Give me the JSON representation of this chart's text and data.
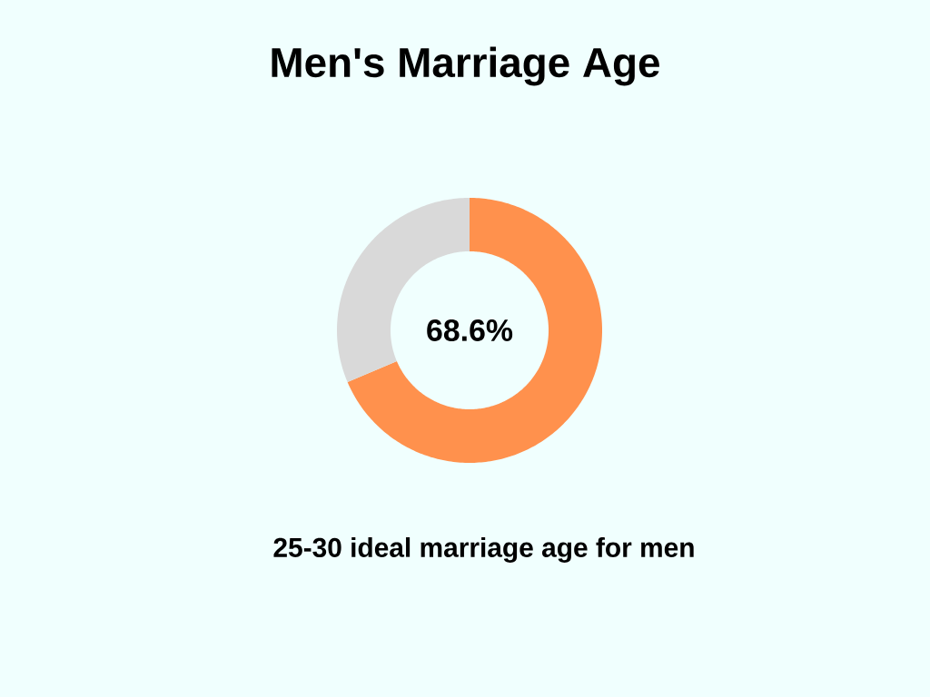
{
  "chart_data": {
    "type": "donut",
    "title": "Men's Marriage Age",
    "categories": [
      null,
      null
    ],
    "values": [
      68.6,
      31.4
    ],
    "colors": [
      "#ff914d",
      "#d9d9d9"
    ],
    "value_labels": [
      "68.6%",
      null
    ],
    "annotations": [
      "25-30 ideal marriage age for men"
    ]
  }
}
